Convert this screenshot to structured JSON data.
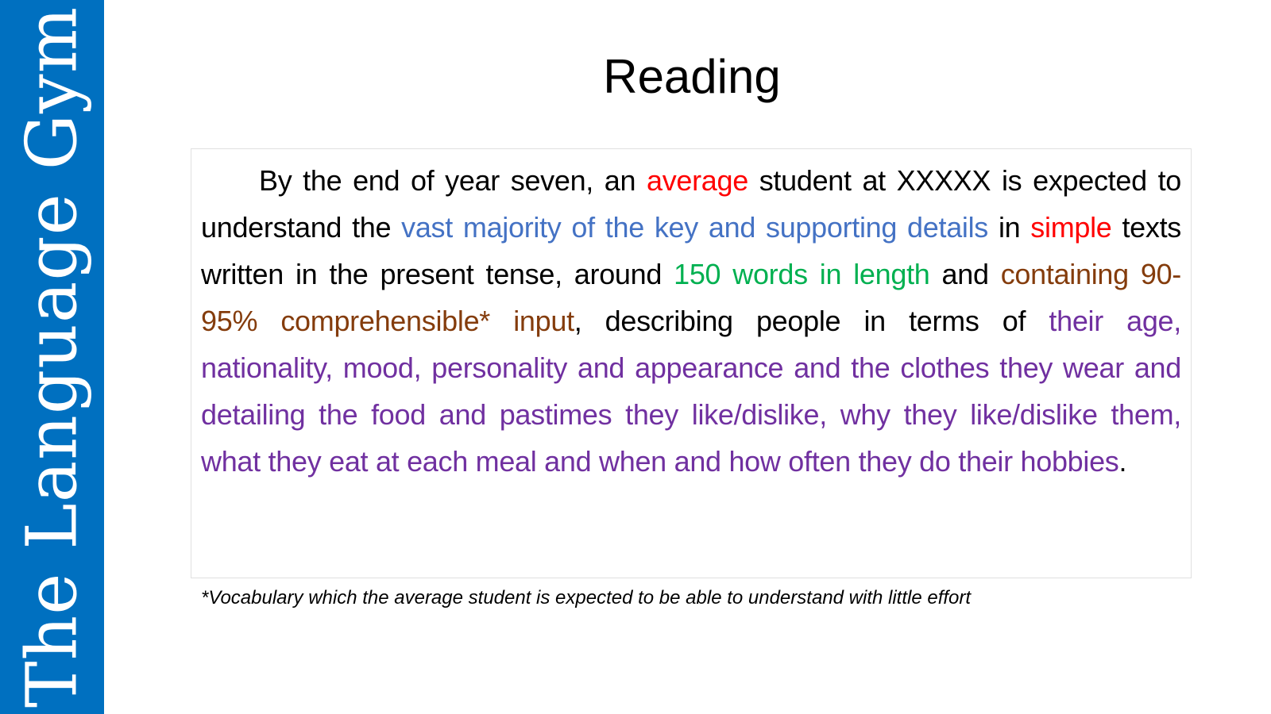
{
  "sidebar": {
    "brand": "The Language Gym",
    "color": "#0070C0"
  },
  "title": "Reading",
  "paragraph": [
    {
      "text": "By the end of year seven, an ",
      "color": "#000000"
    },
    {
      "text": "average",
      "color": "#FF0000"
    },
    {
      "text": " student at XXXXX is expected to understand the ",
      "color": "#000000"
    },
    {
      "text": "vast majority of the key and supporting details",
      "color": "#4472C4"
    },
    {
      "text": " in ",
      "color": "#000000"
    },
    {
      "text": "simple",
      "color": "#FF0000"
    },
    {
      "text": " texts written in the present tense, around ",
      "color": "#000000"
    },
    {
      "text": "150 words in length",
      "color": "#00B050"
    },
    {
      "text": " and ",
      "color": "#000000"
    },
    {
      "text": "containing 90-95% comprehensible* input",
      "color": "#843C0C"
    },
    {
      "text": ", describing people in terms of ",
      "color": "#000000"
    },
    {
      "text": "their age, nationality, mood, personality and appearance and the clothes they wear and detailing the food and pastimes they like/dislike, why they like/dislike them, what they eat at each meal and when and how often they do their hobbies",
      "color": "#7030A0"
    },
    {
      "text": ".",
      "color": "#000000"
    }
  ],
  "footnote": "*Vocabulary which the average student is expected to be able to understand with little effort"
}
